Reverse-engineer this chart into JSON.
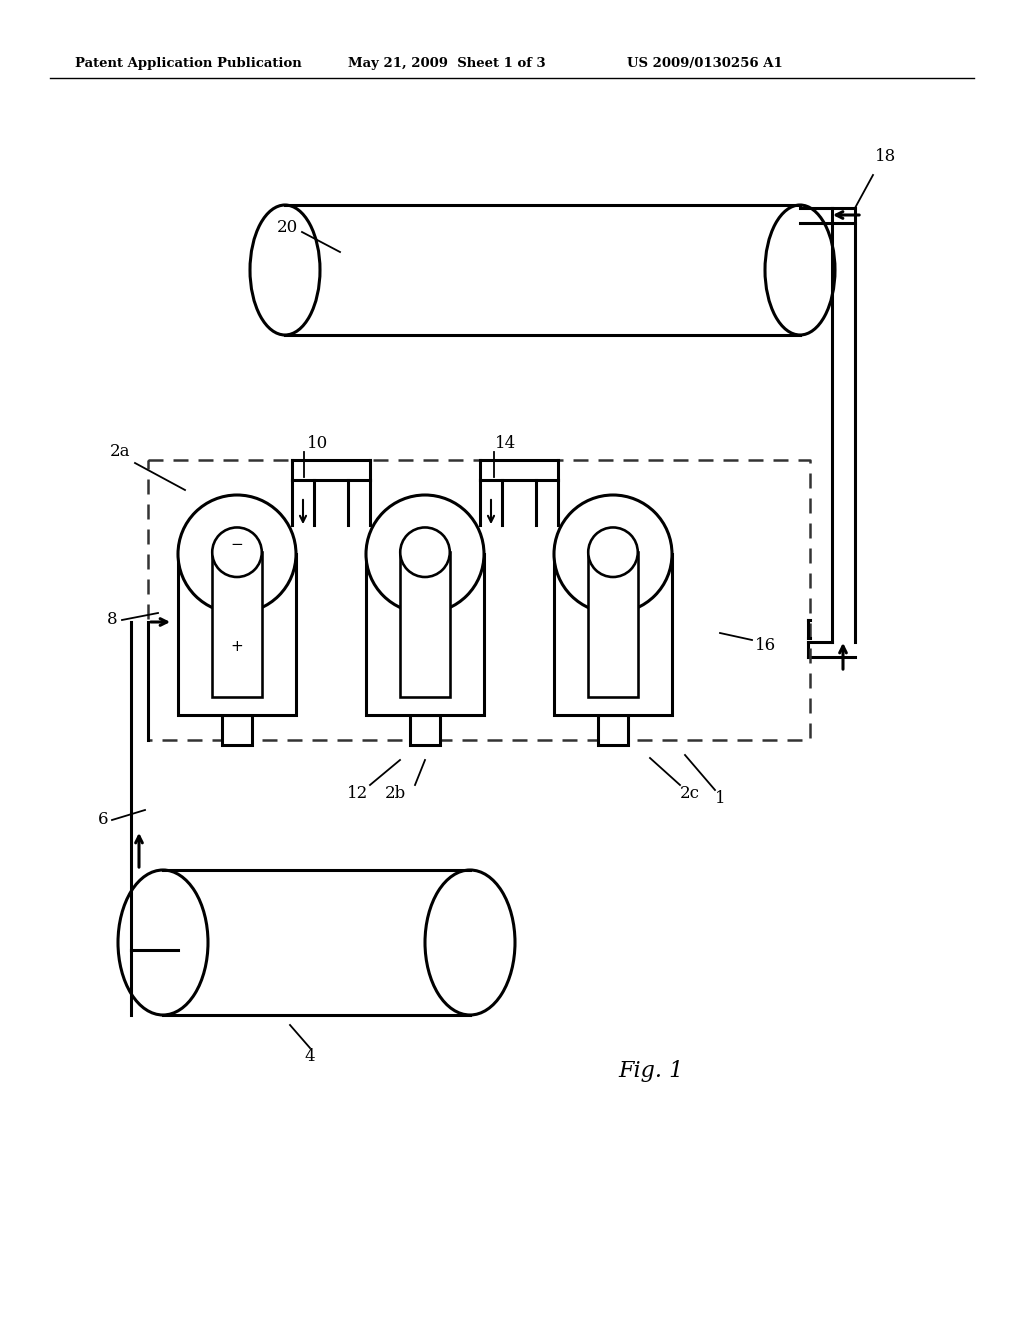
{
  "header_left": "Patent Application Publication",
  "header_mid": "May 21, 2009  Sheet 1 of 3",
  "header_right": "US 2009/0130256 A1",
  "fig_label": "Fig. 1",
  "bg_color": "#ffffff",
  "line_color": "#000000"
}
